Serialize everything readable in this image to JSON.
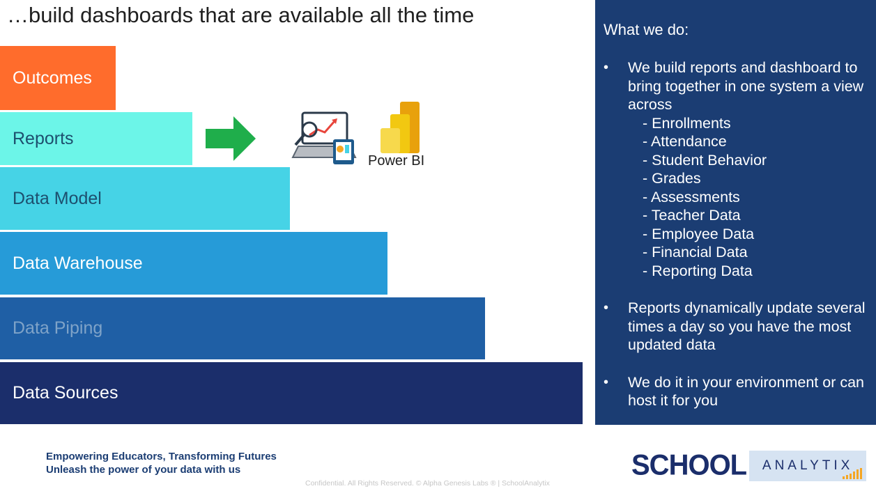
{
  "title": "…build dashboards that are available all the time",
  "layers": [
    {
      "label": "Outcomes",
      "color": "#ff6c2c"
    },
    {
      "label": "Reports",
      "color": "#6cf5e8"
    },
    {
      "label": "Data Model",
      "color": "#46d3e6"
    },
    {
      "label": "Data Warehouse",
      "color": "#269bd8"
    },
    {
      "label": "Data Piping",
      "color": "#1f5fa5"
    },
    {
      "label": "Data Sources",
      "color": "#1b2e6b"
    }
  ],
  "reports_visual": {
    "arrow_icon": "right-arrow-icon",
    "dashboard_icon": "dashboard-devices-icon",
    "powerbi_icon": "power-bi-logo-icon",
    "powerbi_label": "Power BI"
  },
  "panel": {
    "heading": "What we do:",
    "bullet_char": "•",
    "bullets": [
      "We build reports and dashboard to bring together in one system a view across",
      "Reports dynamically update several times a day so you have the most updated data",
      "We do it in your environment or can host it for you"
    ],
    "sub_items": [
      "- Enrollments",
      "- Attendance",
      "- Student Behavior",
      "- Grades",
      "- Assessments",
      "- Teacher Data",
      "- Employee Data",
      "- Financial Data",
      "- Reporting Data"
    ],
    "background": "#1b3d73"
  },
  "footer": {
    "tagline_1": "Empowering Educators, Transforming Futures",
    "tagline_2": "Unleash the power of your data with us",
    "confidential": "Confidential. All Rights Reserved. © Alpha Genesis Labs ® | SchoolAnalytix"
  },
  "logo": {
    "school": "SCHOOL",
    "analytix": "ANALYTIX",
    "brand_color": "#1b2e6b",
    "accent": "#f5a623"
  }
}
